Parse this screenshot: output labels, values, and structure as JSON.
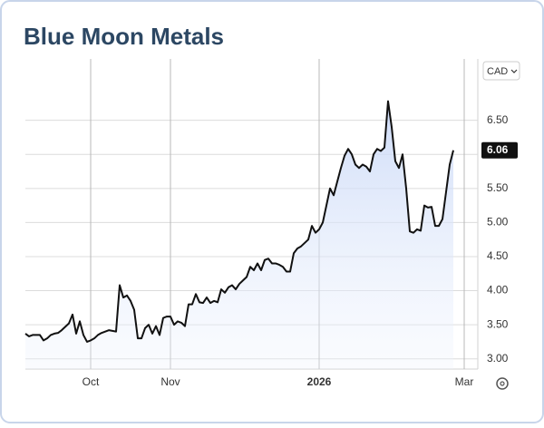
{
  "chart_data": {
    "type": "line",
    "title": "Blue Moon Metals",
    "currency": "CAD",
    "categories": [
      null,
      null,
      null,
      null,
      null,
      null,
      null,
      null,
      null,
      null,
      null,
      null,
      null,
      null,
      null,
      null,
      null,
      null,
      "Oct",
      null,
      null,
      null,
      null,
      null,
      null,
      null,
      null,
      null,
      null,
      null,
      null,
      null,
      null,
      null,
      null,
      null,
      null,
      null,
      null,
      null,
      "Nov",
      null,
      null,
      null,
      null,
      null,
      null,
      null,
      null,
      null,
      null,
      null,
      null,
      null,
      null,
      null,
      null,
      null,
      null,
      null,
      null,
      null,
      null,
      null,
      null,
      null,
      null,
      null,
      null,
      null,
      null,
      null,
      null,
      null,
      null,
      null,
      null,
      null,
      null,
      null,
      null,
      "2026",
      null,
      null,
      null,
      null,
      null,
      null,
      null,
      null,
      null,
      null,
      null,
      null,
      null,
      null,
      null,
      null,
      null,
      null,
      null,
      null,
      null,
      null,
      null,
      null,
      null,
      null,
      null,
      null,
      null,
      null,
      null,
      null,
      null,
      null,
      null,
      null,
      null,
      null,
      null,
      "Mar"
    ],
    "series": [
      {
        "name": "Blue Moon Metals",
        "color": "#111111",
        "values": [
          3.37,
          3.33,
          3.35,
          3.35,
          3.35,
          3.27,
          3.3,
          3.35,
          3.37,
          3.38,
          3.42,
          3.47,
          3.52,
          3.65,
          3.37,
          3.55,
          3.35,
          3.25,
          3.27,
          3.3,
          3.35,
          3.38,
          3.4,
          3.42,
          3.41,
          3.4,
          4.08,
          3.9,
          3.93,
          3.85,
          3.72,
          3.3,
          3.3,
          3.45,
          3.5,
          3.37,
          3.48,
          3.35,
          3.6,
          3.62,
          3.62,
          3.5,
          3.55,
          3.53,
          3.48,
          3.8,
          3.8,
          3.95,
          3.83,
          3.82,
          3.9,
          3.82,
          3.85,
          3.83,
          4.02,
          3.97,
          4.05,
          4.08,
          4.02,
          4.1,
          4.15,
          4.2,
          4.35,
          4.3,
          4.4,
          4.3,
          4.45,
          4.47,
          4.4,
          4.4,
          4.38,
          4.35,
          4.28,
          4.28,
          4.55,
          4.62,
          4.65,
          4.7,
          4.75,
          4.95,
          4.85,
          4.9,
          5.0,
          5.25,
          5.5,
          5.4,
          5.6,
          5.8,
          5.98,
          6.08,
          6.0,
          5.85,
          5.8,
          5.85,
          5.82,
          5.75,
          6.0,
          6.08,
          6.05,
          6.1,
          6.78,
          6.4,
          5.9,
          5.8,
          6.0,
          5.5,
          4.87,
          4.85,
          4.9,
          4.88,
          5.25,
          5.22,
          5.23,
          4.95,
          4.95,
          5.05,
          5.45,
          5.85,
          6.06,
          null,
          null,
          null
        ]
      }
    ],
    "ylim": [
      2.85,
      7.4
    ],
    "yticks": [
      {
        "value": 3,
        "label": "3.00"
      },
      {
        "value": 3.5,
        "label": "3.50"
      },
      {
        "value": 4,
        "label": "4.00"
      },
      {
        "value": 4.5,
        "label": "4.50"
      },
      {
        "value": 5,
        "label": "5.00"
      },
      {
        "value": 5.5,
        "label": "5.50"
      },
      {
        "value": 6,
        "label": "6.00"
      },
      {
        "value": 6.5,
        "label": "6.50"
      }
    ],
    "grid": true
  }
}
